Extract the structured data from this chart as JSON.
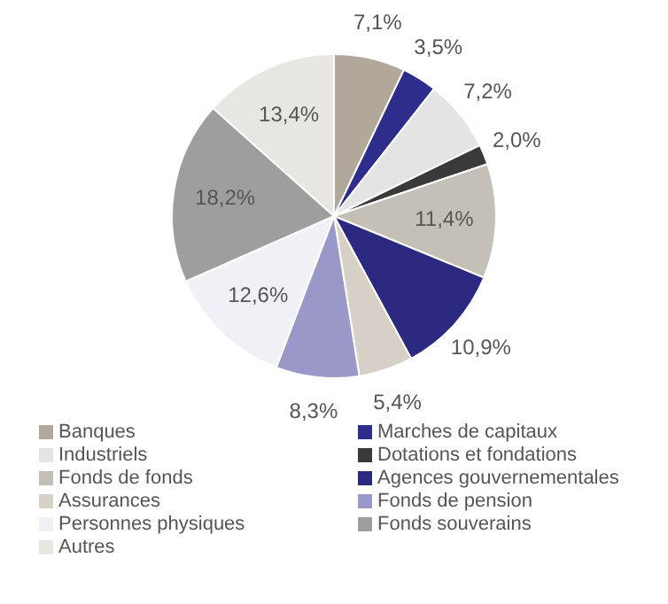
{
  "chart_data": {
    "type": "pie",
    "categories": [
      "Banques",
      "Marches de capitaux",
      "Industriels",
      "Dotations et fondations",
      "Fonds de fonds",
      "Agences gouvernementales",
      "Assurances",
      "Fonds de pension",
      "Personnes physiques",
      "Fonds souverains",
      "Autres"
    ],
    "values": [
      7.1,
      3.5,
      7.2,
      2.0,
      11.4,
      10.9,
      5.4,
      8.3,
      12.6,
      18.2,
      13.4
    ],
    "value_labels": [
      "7,1%",
      "3,5%",
      "7,2%",
      "2,0%",
      "11,4%",
      "10,9%",
      "5,4%",
      "8,3%",
      "12,6%",
      "18,2%",
      "13,4%"
    ],
    "colors": [
      "#b0a89a",
      "#2e2d8c",
      "#e4e4e4",
      "#3a3a3a",
      "#c4c0b8",
      "#2b2a80",
      "#d6d0c6",
      "#9a98c8",
      "#f1f0f6",
      "#9e9e9e",
      "#e8e6e0"
    ],
    "legend": "bottom"
  }
}
